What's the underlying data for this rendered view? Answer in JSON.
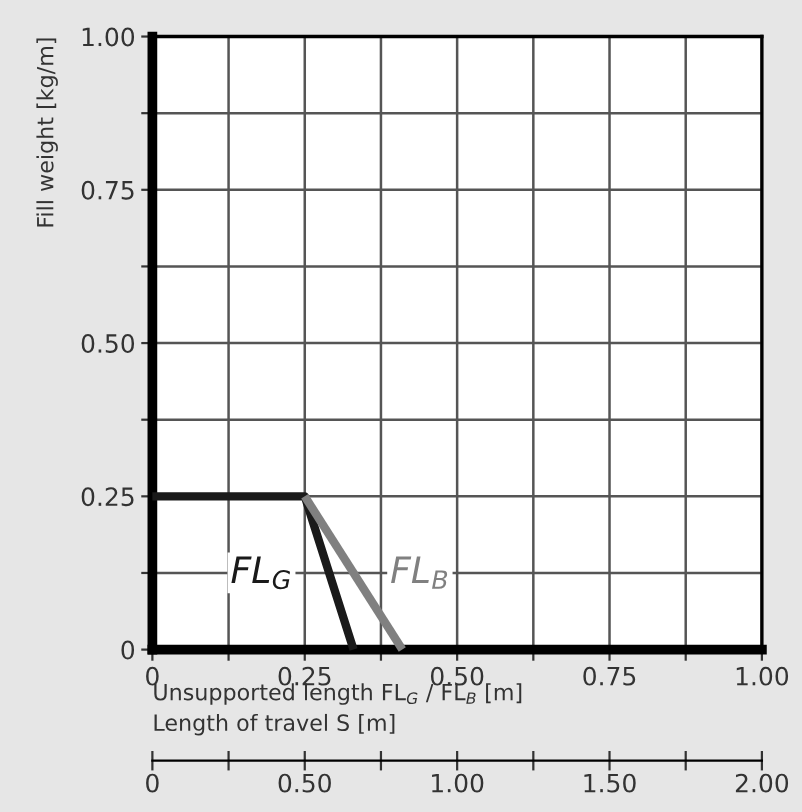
{
  "chart_data": {
    "type": "line",
    "xlabel": "Unsupported length FL$_{G}$ / FL$_{B}$ [m]",
    "ylabel": "Fill weight [kg/m]",
    "x2label": "Length of travel S [m]",
    "series": [
      {
        "name": "FL$_{G}$",
        "color": "#1a1a1a",
        "x": [
          0,
          0.25,
          0.33
        ],
        "values": [
          0.25,
          0.25,
          0
        ]
      },
      {
        "name": "FL$_{B}$",
        "color": "#808080",
        "x": [
          0.25,
          0.41
        ],
        "values": [
          0.25,
          0
        ]
      }
    ],
    "xlim": [
      0,
      1
    ],
    "ylim": [
      0,
      1
    ],
    "x2lim": [
      0,
      2
    ],
    "xticks": [
      0,
      {
        "value": 0.125,
        "label": null
      },
      0.25,
      {
        "value": 0.375,
        "label": null
      },
      {
        "value": 0.5,
        "label": "0.50"
      },
      {
        "value": 0.625,
        "label": null
      },
      0.75,
      {
        "value": 0.875,
        "label": null
      },
      {
        "value": 1,
        "label": "1.00"
      }
    ],
    "yticks": [
      0,
      {
        "value": 0.125,
        "label": null
      },
      0.25,
      {
        "value": 0.375,
        "label": null
      },
      {
        "value": 0.5,
        "label": "0.50"
      },
      {
        "value": 0.625,
        "label": null
      },
      0.75,
      {
        "value": 0.875,
        "label": null
      },
      {
        "value": 1,
        "label": "1.00"
      }
    ],
    "x2ticks": [
      0,
      {
        "value": 0.25,
        "label": null
      },
      {
        "value": 0.5,
        "label": "0.50"
      },
      {
        "value": 0.75,
        "label": null
      },
      {
        "value": 1,
        "label": "1.00"
      },
      {
        "value": 1.25,
        "label": null
      },
      {
        "value": 1.5,
        "label": "1.50"
      },
      {
        "value": 1.75,
        "label": null
      },
      {
        "value": 2,
        "label": "2.00"
      }
    ],
    "grid": true,
    "marker": "none",
    "line_style": "solid"
  }
}
